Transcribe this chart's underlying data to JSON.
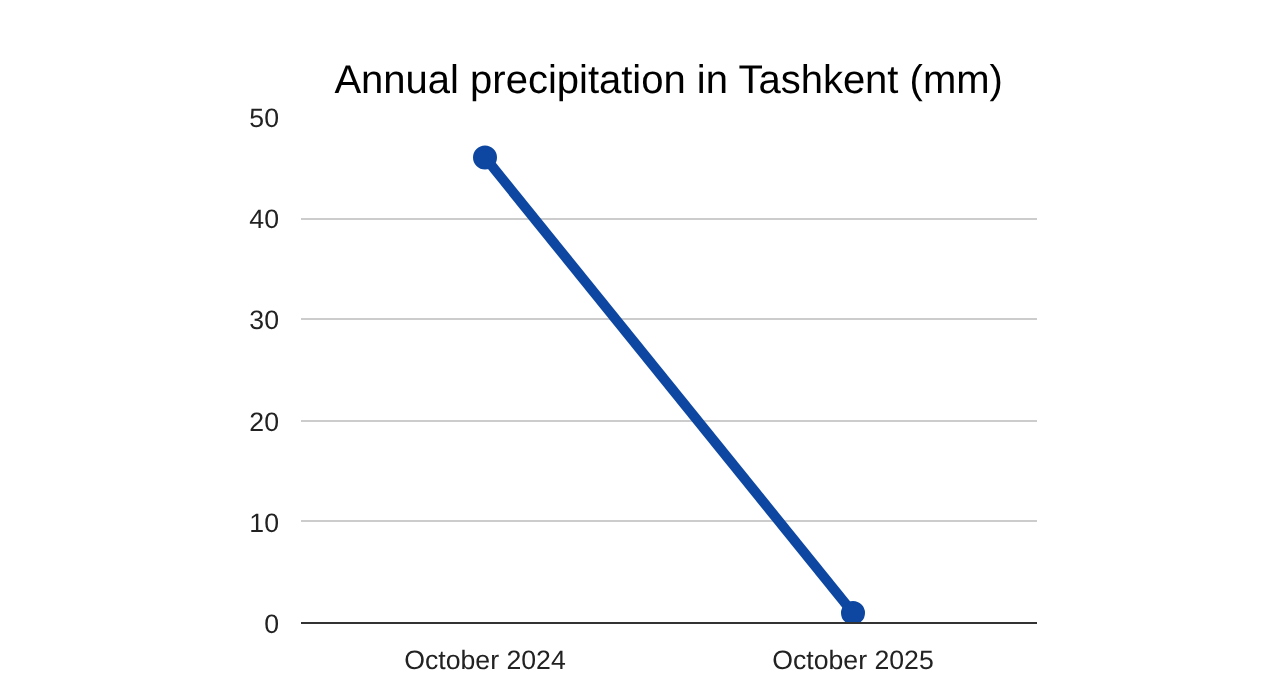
{
  "chart_data": {
    "type": "line",
    "title": "Annual precipitation in Tashkent (mm)",
    "categories": [
      "October 2024",
      "October 2025"
    ],
    "series": [
      {
        "color": "#0d47a1",
        "values": [
          46,
          1
        ]
      }
    ],
    "ylim": [
      0,
      50
    ],
    "yticks": [
      0,
      10,
      20,
      30,
      40,
      50
    ],
    "grid": "y",
    "marker": "circle",
    "line_style": "solid"
  }
}
